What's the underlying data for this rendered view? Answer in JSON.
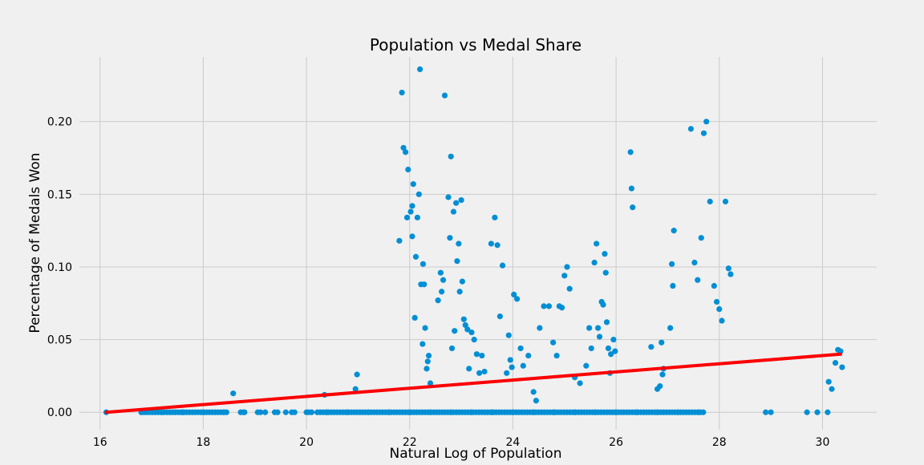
{
  "chart_data": {
    "type": "scatter",
    "title": "Population vs Medal Share",
    "xlabel": "Natural Log of Population",
    "ylabel": "Percentage of Medals Won",
    "xlim": [
      15.6,
      31.05
    ],
    "ylim": [
      -0.012,
      0.2445
    ],
    "xticks": [
      16,
      18,
      20,
      22,
      24,
      26,
      28,
      30
    ],
    "yticks": [
      0.0,
      0.05,
      0.1,
      0.15,
      0.2
    ],
    "xtick_labels": [
      "16",
      "18",
      "20",
      "22",
      "24",
      "26",
      "28",
      "30"
    ],
    "ytick_labels": [
      "0.00",
      "0.05",
      "0.10",
      "0.15",
      "0.20"
    ],
    "grid": true,
    "colors": {
      "points": "#008fd5",
      "fit_line": "#fc0000",
      "background": "#f0f0f0",
      "grid": "#cbcbcb"
    },
    "series": [
      {
        "kind": "points",
        "x": [
          16.12,
          18.58,
          20.35,
          20.95,
          20.98,
          21.8,
          21.85,
          21.88,
          21.92,
          21.95,
          21.97,
          22.02,
          22.05,
          22.07,
          22.12,
          22.15,
          22.18,
          22.2,
          22.22,
          22.25,
          22.26,
          22.28,
          22.3,
          22.33,
          22.35,
          22.37,
          22.4,
          22.05,
          22.1,
          22.55,
          22.6,
          22.62,
          22.65,
          22.68,
          22.75,
          22.78,
          22.8,
          22.82,
          22.85,
          22.87,
          22.9,
          22.92,
          22.95,
          22.97,
          23.0,
          23.02,
          23.05,
          23.08,
          23.12,
          23.15,
          23.2,
          23.25,
          23.3,
          23.35,
          23.4,
          23.45,
          23.58,
          23.65,
          23.7,
          23.75,
          23.8,
          23.88,
          23.92,
          23.95,
          23.98,
          24.02,
          24.08,
          24.15,
          24.2,
          24.3,
          24.4,
          24.45,
          24.52,
          24.6,
          24.7,
          24.78,
          24.85,
          24.9,
          24.95,
          25.0,
          25.05,
          25.1,
          25.2,
          25.3,
          25.42,
          25.48,
          25.52,
          25.58,
          25.62,
          25.65,
          25.68,
          25.72,
          25.75,
          25.78,
          25.8,
          25.82,
          25.85,
          25.88,
          25.9,
          25.95,
          25.98,
          26.28,
          26.3,
          26.32,
          26.68,
          26.8,
          26.85,
          26.88,
          26.9,
          26.92,
          27.05,
          27.08,
          27.1,
          27.12,
          27.45,
          27.52,
          27.58,
          27.65,
          27.7,
          27.75,
          27.82,
          27.9,
          27.95,
          28.0,
          28.05,
          28.12,
          28.18,
          28.22,
          30.12,
          30.18,
          30.25,
          30.3,
          30.35,
          30.38,
          16.8,
          17.2,
          17.6,
          18.0,
          18.4,
          18.8,
          19.2,
          19.6,
          20.0,
          20.4,
          20.8,
          21.2,
          21.6,
          22.0,
          22.4,
          22.8,
          23.2,
          23.6,
          24.0,
          24.4,
          24.8,
          25.2,
          25.6,
          26.0,
          26.4,
          26.8,
          27.2,
          27.6,
          28.9,
          29.0,
          29.7,
          29.9,
          30.1
        ],
        "y": [
          0.0,
          0.013,
          0.012,
          0.016,
          0.026,
          0.118,
          0.22,
          0.182,
          0.179,
          0.134,
          0.167,
          0.138,
          0.142,
          0.157,
          0.107,
          0.134,
          0.15,
          0.236,
          0.088,
          0.047,
          0.102,
          0.088,
          0.058,
          0.03,
          0.035,
          0.039,
          0.02,
          0.121,
          0.065,
          0.077,
          0.096,
          0.083,
          0.091,
          0.218,
          0.148,
          0.12,
          0.176,
          0.044,
          0.138,
          0.056,
          0.144,
          0.104,
          0.116,
          0.083,
          0.146,
          0.09,
          0.064,
          0.06,
          0.057,
          0.03,
          0.055,
          0.05,
          0.04,
          0.027,
          0.039,
          0.028,
          0.116,
          0.134,
          0.115,
          0.066,
          0.101,
          0.027,
          0.053,
          0.036,
          0.031,
          0.081,
          0.078,
          0.044,
          0.032,
          0.039,
          0.014,
          0.008,
          0.058,
          0.073,
          0.073,
          0.048,
          0.039,
          0.073,
          0.072,
          0.094,
          0.1,
          0.085,
          0.024,
          0.02,
          0.032,
          0.058,
          0.044,
          0.103,
          0.116,
          0.058,
          0.052,
          0.076,
          0.074,
          0.109,
          0.096,
          0.062,
          0.044,
          0.027,
          0.04,
          0.05,
          0.042,
          0.179,
          0.154,
          0.141,
          0.045,
          0.016,
          0.018,
          0.048,
          0.026,
          0.03,
          0.058,
          0.102,
          0.087,
          0.125,
          0.195,
          0.103,
          0.091,
          0.12,
          0.192,
          0.2,
          0.145,
          0.087,
          0.076,
          0.071,
          0.063,
          0.145,
          0.099,
          0.095,
          0.021,
          0.016,
          0.034,
          0.043,
          0.042,
          0.031,
          0.0,
          0.0,
          0.0,
          0.0,
          0.0,
          0.0,
          0.0,
          0.0,
          0.0,
          0.0,
          0.0,
          0.0,
          0.0,
          0.0,
          0.0,
          0.0,
          0.0,
          0.0,
          0.0,
          0.0,
          0.0,
          0.0,
          0.0,
          0.0,
          0.0,
          0.0,
          0.0,
          0.0,
          0.0,
          0.0,
          0.0,
          0.0,
          0.0
        ]
      },
      {
        "kind": "fit_line",
        "x": [
          16.12,
          30.35
        ],
        "y": [
          0.0,
          0.04
        ]
      }
    ]
  }
}
